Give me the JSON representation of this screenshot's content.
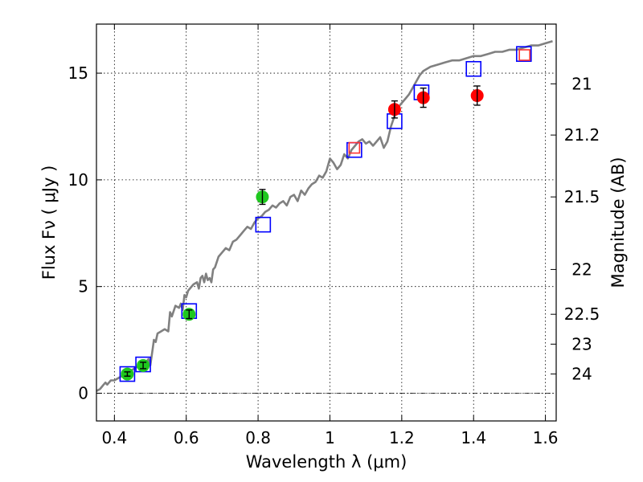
{
  "chart_data": {
    "type": "scatter",
    "title": "",
    "xlabel": "Wavelength  λ (μm)",
    "ylabel": "Flux  Fν  ( μJy )",
    "y2label": "Magnitude (AB)",
    "xlim": [
      0.35,
      1.63
    ],
    "ylim": [
      -1.3,
      17.3
    ],
    "xticks": [
      0.4,
      0.6,
      0.8,
      1.0,
      1.2,
      1.4,
      1.6
    ],
    "xtick_labels": [
      "0.4",
      "0.6",
      "0.8",
      "1",
      "1.2",
      "1.4",
      "1.6"
    ],
    "yticks": [
      0,
      5,
      10,
      15
    ],
    "ytick_labels": [
      "0",
      "5",
      "10",
      "15"
    ],
    "right_ticks": [
      {
        "label": "21",
        "flux": 14.5
      },
      {
        "label": "21.2",
        "flux": 12.1
      },
      {
        "label": "21.5",
        "flux": 9.2
      },
      {
        "label": "22",
        "flux": 5.8
      },
      {
        "label": "22.5",
        "flux": 3.7
      },
      {
        "label": "23",
        "flux": 2.3
      },
      {
        "label": "24",
        "flux": 0.9
      }
    ],
    "grid": true,
    "zero_line": 0,
    "colors": {
      "model": "#808080",
      "green_points": "#1fc81f",
      "red_points": "#ff0000",
      "blue_boxes": "#0000ff",
      "red_boxes": "#ff3333"
    },
    "series": [
      {
        "name": "model spectrum",
        "kind": "line",
        "x": [
          0.35,
          0.36,
          0.365,
          0.37,
          0.375,
          0.38,
          0.385,
          0.39,
          0.4,
          0.41,
          0.42,
          0.43,
          0.44,
          0.45,
          0.46,
          0.47,
          0.48,
          0.485,
          0.49,
          0.495,
          0.5,
          0.505,
          0.51,
          0.515,
          0.52,
          0.53,
          0.54,
          0.55,
          0.555,
          0.56,
          0.57,
          0.58,
          0.585,
          0.59,
          0.595,
          0.6,
          0.605,
          0.61,
          0.62,
          0.63,
          0.635,
          0.64,
          0.645,
          0.65,
          0.655,
          0.66,
          0.665,
          0.67,
          0.675,
          0.68,
          0.69,
          0.7,
          0.71,
          0.72,
          0.73,
          0.74,
          0.75,
          0.76,
          0.77,
          0.78,
          0.79,
          0.8,
          0.81,
          0.82,
          0.83,
          0.84,
          0.85,
          0.86,
          0.87,
          0.88,
          0.89,
          0.9,
          0.91,
          0.92,
          0.93,
          0.94,
          0.95,
          0.96,
          0.97,
          0.98,
          0.99,
          1.0,
          1.01,
          1.02,
          1.03,
          1.04,
          1.05,
          1.06,
          1.07,
          1.08,
          1.09,
          1.1,
          1.11,
          1.12,
          1.13,
          1.14,
          1.15,
          1.16,
          1.17,
          1.18,
          1.19,
          1.2,
          1.21,
          1.22,
          1.23,
          1.24,
          1.25,
          1.26,
          1.28,
          1.3,
          1.32,
          1.34,
          1.36,
          1.38,
          1.4,
          1.42,
          1.44,
          1.46,
          1.48,
          1.5,
          1.52,
          1.54,
          1.56,
          1.58,
          1.6,
          1.62
        ],
        "y": [
          0.1,
          0.2,
          0.3,
          0.4,
          0.5,
          0.4,
          0.5,
          0.6,
          0.6,
          0.7,
          0.8,
          0.9,
          1.0,
          1.1,
          1.2,
          1.3,
          1.3,
          1.4,
          1.5,
          1.6,
          1.3,
          1.9,
          2.5,
          2.4,
          2.8,
          2.9,
          3.0,
          2.9,
          3.8,
          3.6,
          4.1,
          4.0,
          4.2,
          3.9,
          4.6,
          4.5,
          4.8,
          4.9,
          5.1,
          5.2,
          4.9,
          5.4,
          5.5,
          5.2,
          5.6,
          5.3,
          5.4,
          5.2,
          5.8,
          5.9,
          6.4,
          6.6,
          6.8,
          6.7,
          7.1,
          7.2,
          7.4,
          7.6,
          7.8,
          7.7,
          8.0,
          8.2,
          8.3,
          8.5,
          8.6,
          8.8,
          8.7,
          8.9,
          9.0,
          8.8,
          9.2,
          9.3,
          9.0,
          9.5,
          9.3,
          9.6,
          9.8,
          9.9,
          10.2,
          10.1,
          10.4,
          11.0,
          10.8,
          10.5,
          10.7,
          11.2,
          11.0,
          11.4,
          11.6,
          11.8,
          11.9,
          11.7,
          11.8,
          11.6,
          11.8,
          12.0,
          11.5,
          11.8,
          12.5,
          13.0,
          13.4,
          13.6,
          13.8,
          14.0,
          14.3,
          14.6,
          14.9,
          15.1,
          15.3,
          15.4,
          15.5,
          15.6,
          15.6,
          15.7,
          15.8,
          15.8,
          15.9,
          16.0,
          16.0,
          16.1,
          16.1,
          16.2,
          16.3,
          16.3,
          16.4,
          16.5
        ]
      },
      {
        "name": "observed (optical)",
        "kind": "points",
        "color": "#1fc81f",
        "x": [
          0.436,
          0.48,
          0.608,
          0.812
        ],
        "y": [
          0.9,
          1.3,
          3.7,
          9.2
        ],
        "err": [
          0.1,
          0.15,
          0.2,
          0.35
        ]
      },
      {
        "name": "observed (near-IR)",
        "kind": "points",
        "color": "#ff0000",
        "x": [
          1.18,
          1.26,
          1.41
        ],
        "y": [
          13.3,
          13.85,
          13.95
        ],
        "err": [
          0.4,
          0.45,
          0.45
        ]
      },
      {
        "name": "model photometry",
        "kind": "open-squares",
        "color": "#0000ff",
        "x": [
          0.436,
          0.48,
          0.608,
          0.814,
          1.068,
          1.18,
          1.255,
          1.4,
          1.54
        ],
        "y": [
          0.9,
          1.35,
          3.85,
          7.9,
          11.4,
          12.75,
          14.1,
          15.2,
          15.9
        ]
      },
      {
        "name": "model photometry (IR)",
        "kind": "open-squares-small",
        "color": "#ff3333",
        "x": [
          1.068,
          1.542
        ],
        "y": [
          11.5,
          15.85
        ]
      }
    ]
  }
}
